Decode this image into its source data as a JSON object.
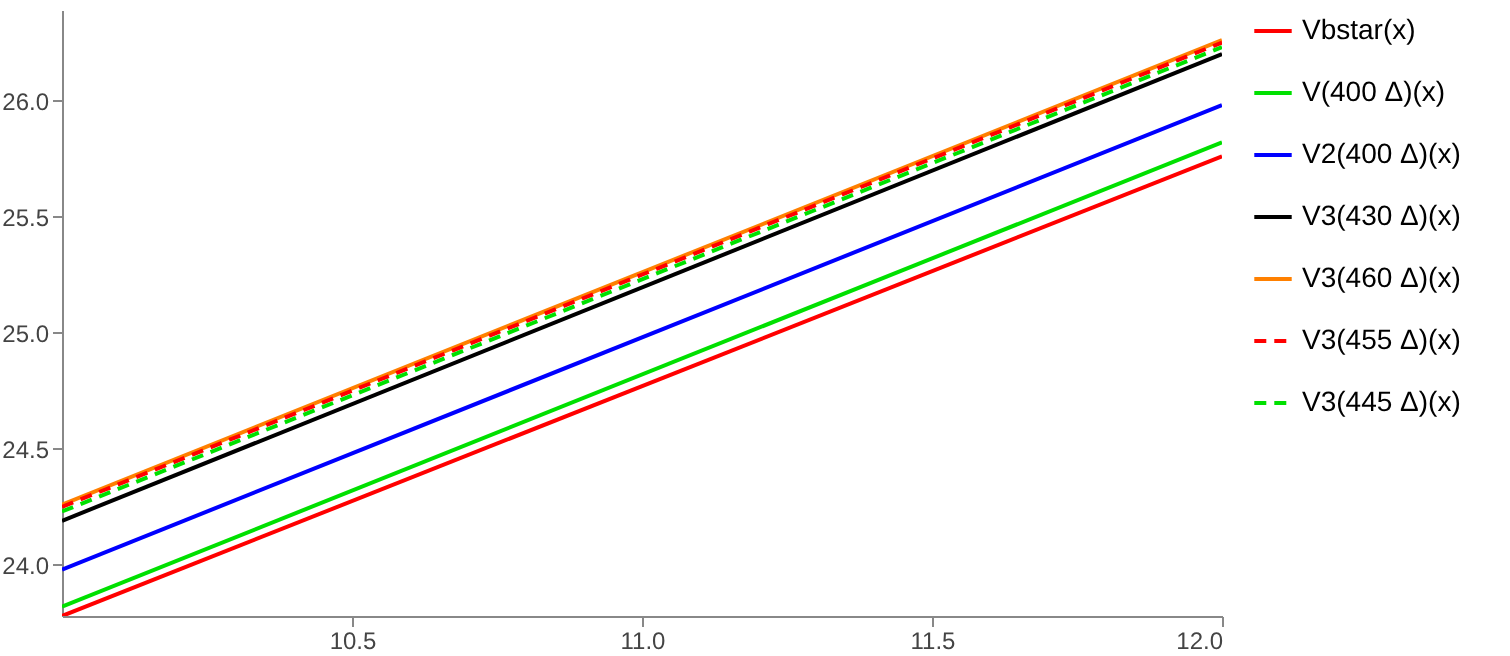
{
  "chart_data": {
    "type": "line",
    "xlim": [
      10,
      12
    ],
    "ylim": [
      23.78,
      26.39
    ],
    "xticks": [
      {
        "value": 10.5,
        "label": "10.5"
      },
      {
        "value": 11,
        "label": "11.0"
      },
      {
        "value": 11.5,
        "label": "11.5"
      },
      {
        "value": 12,
        "label": "12.0"
      }
    ],
    "yticks": [
      {
        "value": 24,
        "label": "24.0"
      },
      {
        "value": 24.5,
        "label": "24.5"
      },
      {
        "value": 25,
        "label": "25.0"
      },
      {
        "value": 25.5,
        "label": "25.5"
      },
      {
        "value": 26,
        "label": "26.0"
      }
    ],
    "grid": false,
    "legend": "right",
    "marker": "none",
    "x": [
      10,
      12
    ],
    "series": [
      {
        "name": "Vbstar(x)",
        "color": "#ff0000",
        "line_style": "solid",
        "values": [
          23.78,
          25.76
        ]
      },
      {
        "name": "V(400 Δ)(x)",
        "color": "#00e000",
        "line_style": "solid",
        "values": [
          23.82,
          25.82
        ]
      },
      {
        "name": "V2(400 Δ)(x)",
        "color": "#0000ff",
        "line_style": "solid",
        "values": [
          23.98,
          25.98
        ]
      },
      {
        "name": "V3(430 Δ)(x)",
        "color": "#000000",
        "line_style": "solid",
        "values": [
          24.19,
          26.2
        ]
      },
      {
        "name": "V3(460 Δ)(x)",
        "color": "#ff8000",
        "line_style": "solid",
        "values": [
          24.26,
          26.26
        ]
      },
      {
        "name": "V3(455 Δ)(x)",
        "color": "#ff0000",
        "line_style": "dashed",
        "values": [
          24.25,
          26.25
        ]
      },
      {
        "name": "V3(445 Δ)(x)",
        "color": "#00e000",
        "line_style": "dashed",
        "values": [
          24.23,
          26.23
        ]
      }
    ]
  }
}
